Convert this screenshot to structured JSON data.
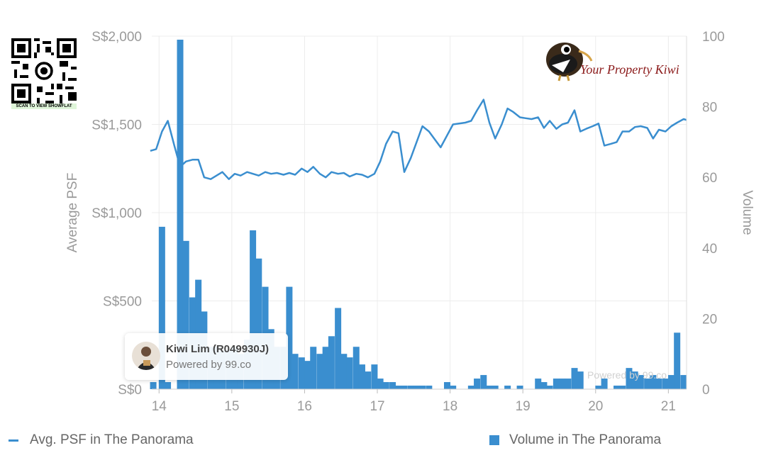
{
  "agent": {
    "name": "Kiwi Lim (R049930J)",
    "powered_by": "Powered by 99.co"
  },
  "watermark": "Powered by 99.co",
  "qr_caption": "SCAN TO VIEW SHOWFLAT",
  "logo_text": "Your Property Kiwi",
  "legend": {
    "line_label": "Avg. PSF in The Panorama",
    "bar_label": "Volume in The Panorama"
  },
  "colors": {
    "series": "#3a8ecf",
    "grid": "#ececec",
    "text": "#9a9a9a",
    "logo_text": "#8b1a1a"
  },
  "chart_data": {
    "type": "bar",
    "title": "",
    "xlabel": "",
    "ylabel": "Average PSF",
    "y2label": "Volume",
    "xlim": [
      13.9,
      21.25
    ],
    "ylim": [
      0,
      2000
    ],
    "y2lim": [
      0,
      100
    ],
    "x_ticks": [
      "14",
      "15",
      "16",
      "17",
      "18",
      "19",
      "20",
      "21"
    ],
    "y_ticks": [
      "S$0",
      "S$500",
      "S$1,000",
      "S$1,500",
      "S$2,000"
    ],
    "y2_ticks": [
      "0",
      "20",
      "40",
      "60",
      "80",
      "100"
    ],
    "grid": true,
    "legend_position": "bottom",
    "series": [
      {
        "name": "Volume in The Panorama",
        "type": "bar",
        "axis": "right",
        "x": [
          13.92,
          14.04,
          14.12,
          14.29,
          14.37,
          14.46,
          14.54,
          14.62,
          14.71,
          14.79,
          14.87,
          14.96,
          15.04,
          15.12,
          15.21,
          15.29,
          15.37,
          15.46,
          15.54,
          15.62,
          15.71,
          15.79,
          15.87,
          15.96,
          16.04,
          16.12,
          16.21,
          16.29,
          16.37,
          16.46,
          16.54,
          16.62,
          16.71,
          16.79,
          16.87,
          16.96,
          17.04,
          17.12,
          17.21,
          17.29,
          17.37,
          17.46,
          17.54,
          17.62,
          17.71,
          17.96,
          18.04,
          18.29,
          18.37,
          18.46,
          18.54,
          18.62,
          18.79,
          18.96,
          19.21,
          19.29,
          19.37,
          19.46,
          19.54,
          19.62,
          19.71,
          19.79,
          20.04,
          20.12,
          20.29,
          20.37,
          20.46,
          20.54,
          20.62,
          20.71,
          20.79,
          20.87,
          20.96,
          21.04,
          21.12,
          21.21
        ],
        "values": [
          2,
          46,
          2,
          99,
          42,
          26,
          31,
          22,
          12,
          12,
          11,
          11,
          12,
          10,
          14,
          45,
          37,
          29,
          17,
          12,
          12,
          29,
          10,
          9,
          8,
          12,
          10,
          12,
          15,
          23,
          10,
          9,
          12,
          7,
          5,
          7,
          3,
          2,
          2,
          1,
          1,
          1,
          1,
          1,
          1,
          2,
          1,
          1,
          3,
          4,
          1,
          1,
          1,
          1,
          3,
          2,
          1,
          3,
          3,
          3,
          6,
          5,
          1,
          3,
          1,
          1,
          6,
          5,
          4,
          3,
          4,
          3,
          3,
          4,
          16,
          4
        ]
      },
      {
        "name": "Avg. PSF in The Panorama",
        "type": "line",
        "axis": "left",
        "x": [
          13.88,
          13.96,
          14.04,
          14.12,
          14.21,
          14.29,
          14.37,
          14.46,
          14.54,
          14.62,
          14.71,
          14.79,
          14.87,
          14.96,
          15.04,
          15.12,
          15.21,
          15.29,
          15.37,
          15.46,
          15.54,
          15.62,
          15.71,
          15.79,
          15.87,
          15.96,
          16.04,
          16.12,
          16.21,
          16.29,
          16.37,
          16.46,
          16.54,
          16.62,
          16.71,
          16.79,
          16.87,
          16.96,
          17.04,
          17.12,
          17.21,
          17.29,
          17.37,
          17.46,
          17.54,
          17.62,
          17.71,
          17.87,
          18.04,
          18.21,
          18.29,
          18.37,
          18.46,
          18.54,
          18.62,
          18.71,
          18.79,
          18.87,
          18.96,
          19.04,
          19.12,
          19.21,
          19.29,
          19.37,
          19.46,
          19.54,
          19.62,
          19.71,
          19.79,
          19.87,
          19.96,
          20.04,
          20.12,
          20.21,
          20.29,
          20.37,
          20.46,
          20.54,
          20.62,
          20.71,
          20.79,
          20.87,
          20.96,
          21.04,
          21.12,
          21.21,
          21.25
        ],
        "values": [
          1350,
          1360,
          1460,
          1520,
          1380,
          1260,
          1290,
          1300,
          1300,
          1200,
          1190,
          1210,
          1230,
          1190,
          1220,
          1210,
          1230,
          1220,
          1210,
          1230,
          1220,
          1225,
          1215,
          1225,
          1215,
          1250,
          1230,
          1260,
          1220,
          1200,
          1230,
          1220,
          1225,
          1205,
          1220,
          1215,
          1200,
          1220,
          1290,
          1390,
          1460,
          1450,
          1230,
          1310,
          1400,
          1490,
          1460,
          1370,
          1500,
          1510,
          1520,
          1580,
          1640,
          1510,
          1420,
          1500,
          1590,
          1570,
          1540,
          1535,
          1530,
          1540,
          1480,
          1520,
          1475,
          1500,
          1510,
          1580,
          1460,
          1475,
          1490,
          1505,
          1380,
          1390,
          1400,
          1460,
          1460,
          1485,
          1490,
          1480,
          1420,
          1470,
          1460,
          1490,
          1510,
          1530,
          1525
        ]
      }
    ]
  }
}
